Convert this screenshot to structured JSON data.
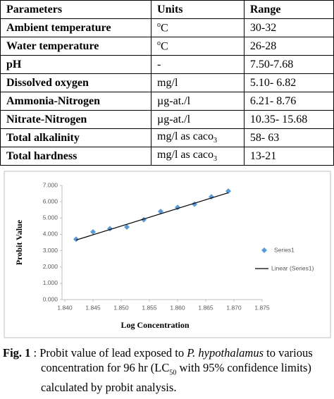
{
  "table": {
    "header": [
      "Parameters",
      "Units",
      "Range"
    ],
    "rows": [
      [
        "Ambient temperature",
        {
          "sup": "o",
          "text": "C"
        },
        "30-32"
      ],
      [
        "Water temperature",
        {
          "sup": "o",
          "text": "C"
        },
        "26-28"
      ],
      [
        "pH",
        "-",
        "7.50-7.68"
      ],
      [
        "Dissolved oxygen",
        "mg/l",
        "5.10- 6.82"
      ],
      [
        "Ammonia-Nitrogen",
        "µg-at./l",
        "6.21- 8.76"
      ],
      [
        "Nitrate-Nitrogen",
        "µg-at./l",
        "10.35- 15.68"
      ],
      [
        "Total alkalinity",
        {
          "text": "mg/l as caco",
          "sub": "3"
        },
        "58- 63"
      ],
      [
        "Total hardness",
        {
          "text": "mg/l as caco",
          "sub": "3"
        },
        "13-21"
      ]
    ]
  },
  "chart_data": {
    "type": "scatter",
    "xlabel": "Log Concentration",
    "ylabel": "Probit Value",
    "xlim": [
      1.84,
      1.875
    ],
    "xticks": [
      {
        "value": 1.84,
        "label": "1.840"
      },
      {
        "value": 1.845,
        "label": "1.845"
      },
      {
        "value": 1.85,
        "label": "1.850"
      },
      {
        "value": 1.855,
        "label": "1.855"
      },
      {
        "value": 1.86,
        "label": "1.860"
      },
      {
        "value": 1.865,
        "label": "1.865"
      },
      {
        "value": 1.87,
        "label": "1.870"
      },
      {
        "value": 1.875,
        "label": "1.875"
      }
    ],
    "ylim": [
      0,
      7
    ],
    "yticks": [
      {
        "value": 0,
        "label": "0.000"
      },
      {
        "value": 1,
        "label": "1.000"
      },
      {
        "value": 2,
        "label": "2.000"
      },
      {
        "value": 3,
        "label": "3.000"
      },
      {
        "value": 4,
        "label": "4.000"
      },
      {
        "value": 5,
        "label": "5.000"
      },
      {
        "value": 6,
        "label": "6.000"
      },
      {
        "value": 7,
        "label": "7.000"
      }
    ],
    "series": [
      {
        "name": "Series1",
        "color": "#5b9bd5",
        "x": [
          1.842,
          1.845,
          1.848,
          1.851,
          1.854,
          1.857,
          1.86,
          1.863,
          1.866,
          1.869
        ],
        "values": [
          3.7,
          4.15,
          4.35,
          4.45,
          4.9,
          5.4,
          5.65,
          5.85,
          6.3,
          6.65
        ]
      },
      {
        "name": "Linear (Series1)",
        "color": "#000000",
        "x": [
          1.842,
          1.869
        ],
        "values": [
          3.65,
          6.55
        ]
      }
    ]
  },
  "caption": {
    "label": "Fig. 1",
    "text1": " : Probit value of lead exposed to ",
    "species": "P. hypothalamus",
    "text2": " to various concentration for 96 hr (LC",
    "sub": "50",
    "text3": " with 95% confidence limits) calculated by probit analysis."
  }
}
